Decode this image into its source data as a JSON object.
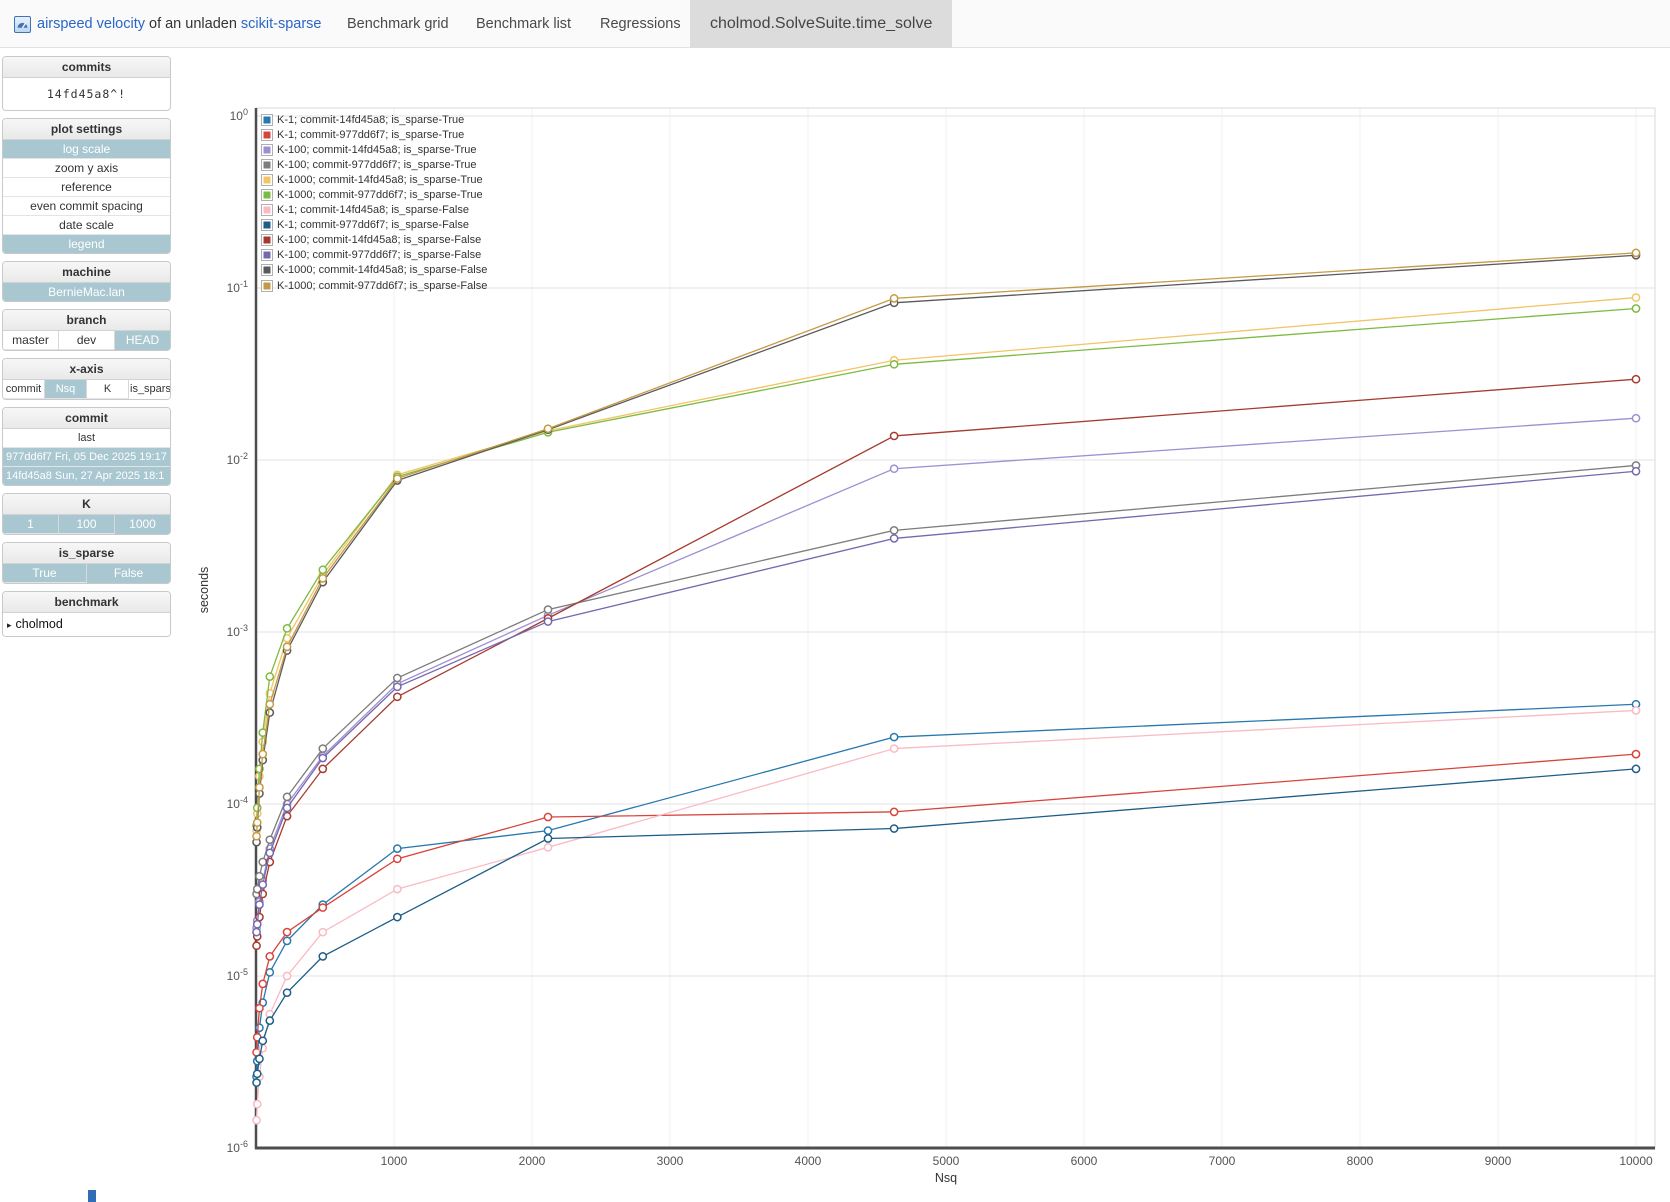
{
  "navbar": {
    "brand": {
      "logo_icon": "asv-gauge-icon",
      "link1": "airspeed velocity",
      "mid": "of an unladen",
      "link2": "scikit-sparse"
    },
    "items": [
      {
        "label": "Benchmark grid"
      },
      {
        "label": "Benchmark list"
      },
      {
        "label": "Regressions"
      }
    ],
    "active_tab": "cholmod.SolveSuite.time_solve"
  },
  "sidebar": {
    "panels": [
      {
        "title": "commits",
        "type": "text",
        "text": "14fd45a8^!"
      },
      {
        "title": "plot settings",
        "type": "stack",
        "buttons": [
          {
            "label": "log scale",
            "selected": true
          },
          {
            "label": "zoom y axis",
            "selected": false
          },
          {
            "label": "reference",
            "selected": false
          },
          {
            "label": "even commit spacing",
            "selected": false
          },
          {
            "label": "date scale",
            "selected": false
          },
          {
            "label": "legend",
            "selected": true
          }
        ]
      },
      {
        "title": "machine",
        "type": "stack",
        "buttons": [
          {
            "label": "BernieMac.lan",
            "selected": true
          }
        ]
      },
      {
        "title": "branch",
        "type": "row",
        "buttons": [
          {
            "label": "master",
            "selected": false
          },
          {
            "label": "dev",
            "selected": false
          },
          {
            "label": "HEAD",
            "selected": true
          }
        ]
      },
      {
        "title": "x-axis",
        "type": "row",
        "small": true,
        "buttons": [
          {
            "label": "commit",
            "selected": false
          },
          {
            "label": "Nsq",
            "selected": true
          },
          {
            "label": "K",
            "selected": false
          },
          {
            "label": "is_sparse",
            "selected": false
          }
        ]
      },
      {
        "title": "commit",
        "type": "stack",
        "small": true,
        "buttons": [
          {
            "label": "last",
            "selected": false,
            "center": true
          },
          {
            "label": "977dd6f7 Fri, 05 Dec 2025 19:17",
            "selected": true,
            "left": true
          },
          {
            "label": "14fd45a8 Sun, 27 Apr 2025 18:1",
            "selected": true,
            "left": true
          }
        ]
      },
      {
        "title": "K",
        "type": "row",
        "buttons": [
          {
            "label": "1",
            "selected": true
          },
          {
            "label": "100",
            "selected": true
          },
          {
            "label": "1000",
            "selected": true
          }
        ]
      },
      {
        "title": "is_sparse",
        "type": "row",
        "buttons": [
          {
            "label": "True",
            "selected": true
          },
          {
            "label": "False",
            "selected": true
          }
        ]
      },
      {
        "title": "benchmark",
        "type": "tree",
        "items": [
          {
            "arrow": "▸",
            "label": "cholmod"
          }
        ]
      }
    ]
  },
  "chart_data": {
    "type": "line",
    "title": "",
    "xlabel": "Nsq",
    "ylabel": "seconds",
    "y_scale": "log",
    "ylim": [
      1e-06,
      1
    ],
    "xlim": [
      0,
      10000
    ],
    "grid": true,
    "legend_position": "top-left-inside",
    "x_ticks": [
      1000,
      2000,
      3000,
      4000,
      5000,
      6000,
      7000,
      8000,
      9000,
      10000
    ],
    "y_tick_exponents": [
      0,
      -1,
      -2,
      -3,
      -4,
      -5,
      -6
    ],
    "x": [
      4,
      9,
      25,
      49,
      100,
      225,
      484,
      1024,
      2116,
      4624,
      10000
    ],
    "series": [
      {
        "name": "K-1; commit-14fd45a8; is_sparse-True",
        "color": "#2878ae",
        "values": [
          2.6e-06,
          3.2e-06,
          5e-06,
          7e-06,
          1.05e-05,
          1.6e-05,
          2.6e-05,
          5.5e-05,
          7e-05,
          0.000245,
          0.00038
        ]
      },
      {
        "name": "K-1; commit-977dd6f7; is_sparse-True",
        "color": "#d8443c",
        "values": [
          3.6e-06,
          4.4e-06,
          6.5e-06,
          9e-06,
          1.3e-05,
          1.8e-05,
          2.5e-05,
          4.8e-05,
          8.4e-05,
          9e-05,
          0.000195
        ]
      },
      {
        "name": "K-100; commit-14fd45a8; is_sparse-True",
        "color": "#9e8fd2",
        "values": [
          1.9e-05,
          2.1e-05,
          2.7e-05,
          3.6e-05,
          5.5e-05,
          0.0001,
          0.00019,
          0.0005,
          0.00125,
          0.0089,
          0.0175
        ]
      },
      {
        "name": "K-100; commit-977dd6f7; is_sparse-True",
        "color": "#7d7d7d",
        "values": [
          3e-05,
          3.2e-05,
          3.8e-05,
          4.6e-05,
          6.2e-05,
          0.00011,
          0.00021,
          0.00054,
          0.00135,
          0.0039,
          0.0093
        ]
      },
      {
        "name": "K-1000; commit-14fd45a8; is_sparse-True",
        "color": "#f2c464",
        "values": [
          7e-05,
          8.8e-05,
          0.000145,
          0.00023,
          0.00044,
          0.00092,
          0.00215,
          0.0082,
          0.0148,
          0.038,
          0.088
        ]
      },
      {
        "name": "K-1000; commit-977dd6f7; is_sparse-True",
        "color": "#7eba41",
        "values": [
          7.5e-05,
          9.5e-05,
          0.00016,
          0.00026,
          0.00055,
          0.00105,
          0.0023,
          0.008,
          0.0145,
          0.036,
          0.076
        ]
      },
      {
        "name": "K-1; commit-14fd45a8; is_sparse-False",
        "color": "#f9bac4",
        "values": [
          1.45e-06,
          1.8e-06,
          2.6e-06,
          3.8e-06,
          6e-06,
          1e-05,
          1.8e-05,
          3.2e-05,
          5.6e-05,
          0.00021,
          0.00035
        ]
      },
      {
        "name": "K-1; commit-977dd6f7; is_sparse-False",
        "color": "#1d5d87",
        "values": [
          2.4e-06,
          2.7e-06,
          3.3e-06,
          4.2e-06,
          5.5e-06,
          8e-06,
          1.3e-05,
          2.2e-05,
          6.3e-05,
          7.2e-05,
          0.00016
        ]
      },
      {
        "name": "K-100; commit-14fd45a8; is_sparse-False",
        "color": "#a73a2e",
        "values": [
          1.5e-05,
          1.7e-05,
          2.2e-05,
          3e-05,
          4.6e-05,
          8.5e-05,
          0.00016,
          0.00042,
          0.0012,
          0.0138,
          0.0295
        ]
      },
      {
        "name": "K-100; commit-977dd6f7; is_sparse-False",
        "color": "#7568b0",
        "values": [
          1.8e-05,
          2e-05,
          2.6e-05,
          3.4e-05,
          5.2e-05,
          9.5e-05,
          0.000185,
          0.00048,
          0.00115,
          0.0035,
          0.0086
        ]
      },
      {
        "name": "K-1000; commit-14fd45a8; is_sparse-False",
        "color": "#5a5a5a",
        "values": [
          6e-05,
          7.3e-05,
          0.000115,
          0.00018,
          0.00034,
          0.00078,
          0.00195,
          0.0076,
          0.015,
          0.082,
          0.155
        ]
      },
      {
        "name": "K-1000; commit-977dd6f7; is_sparse-False",
        "color": "#c49a44",
        "values": [
          6.5e-05,
          7.8e-05,
          0.000125,
          0.000195,
          0.00038,
          0.00082,
          0.00205,
          0.0078,
          0.0152,
          0.087,
          0.16
        ]
      }
    ]
  },
  "misc": {
    "bottom_left_fragment_color": "#2f6db5"
  }
}
